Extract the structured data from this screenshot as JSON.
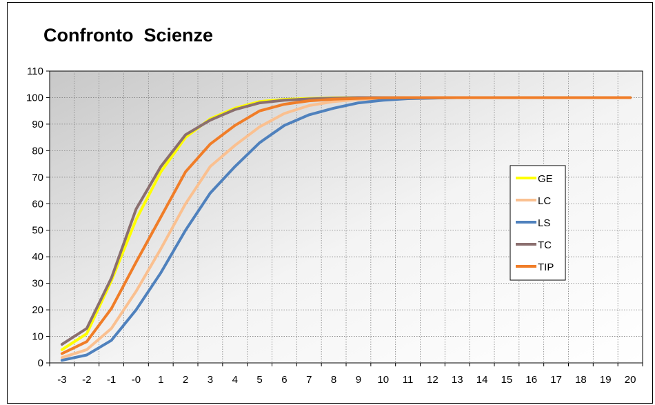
{
  "chart_data": {
    "type": "line",
    "title": "Confronto  Scienze",
    "xlabel": "",
    "ylabel": "",
    "x": [
      "-3",
      "-2",
      "-1",
      "-0",
      "1",
      "2",
      "3",
      "4",
      "5",
      "6",
      "7",
      "8",
      "9",
      "10",
      "11",
      "12",
      "13",
      "14",
      "15",
      "16",
      "17",
      "18",
      "19",
      "20"
    ],
    "ylim": [
      0,
      110
    ],
    "yticks": [
      0,
      10,
      20,
      30,
      40,
      50,
      60,
      70,
      80,
      90,
      100,
      110
    ],
    "grid": true,
    "legend_position": "right",
    "series": [
      {
        "name": "GE",
        "color": "#ffff00",
        "values": [
          5,
          11,
          31,
          54,
          72,
          85,
          92,
          96,
          98.5,
          99.3,
          99.7,
          99.9,
          100,
          100,
          100,
          100,
          100,
          100,
          100,
          100,
          100,
          100,
          100,
          100
        ]
      },
      {
        "name": "LC",
        "color": "#fac090",
        "values": [
          2,
          5,
          13,
          27,
          43,
          60,
          74,
          82,
          89,
          94,
          97,
          98.5,
          99.3,
          99.7,
          99.9,
          100,
          100,
          100,
          100,
          100,
          100,
          100,
          100,
          100
        ]
      },
      {
        "name": "LS",
        "color": "#4f81bd",
        "values": [
          1,
          3,
          8.5,
          20,
          34,
          50,
          64,
          74,
          83,
          89.5,
          93.5,
          96,
          98,
          99,
          99.6,
          99.8,
          100,
          100,
          100,
          100,
          100,
          100,
          100,
          100
        ]
      },
      {
        "name": "TC",
        "color": "#8b6f6f",
        "values": [
          7,
          13,
          32,
          58,
          74,
          86,
          91.5,
          95.5,
          98,
          99,
          99.5,
          99.8,
          100,
          100,
          100,
          100,
          100,
          100,
          100,
          100,
          100,
          100,
          100,
          100
        ]
      },
      {
        "name": "TIP",
        "color": "#f07d28",
        "values": [
          3.5,
          8,
          20.5,
          38,
          55,
          72,
          82.5,
          89.5,
          95,
          97.5,
          98.8,
          99.4,
          99.7,
          99.9,
          100,
          100,
          100,
          100,
          100,
          100,
          100,
          100,
          100,
          100
        ]
      }
    ]
  }
}
